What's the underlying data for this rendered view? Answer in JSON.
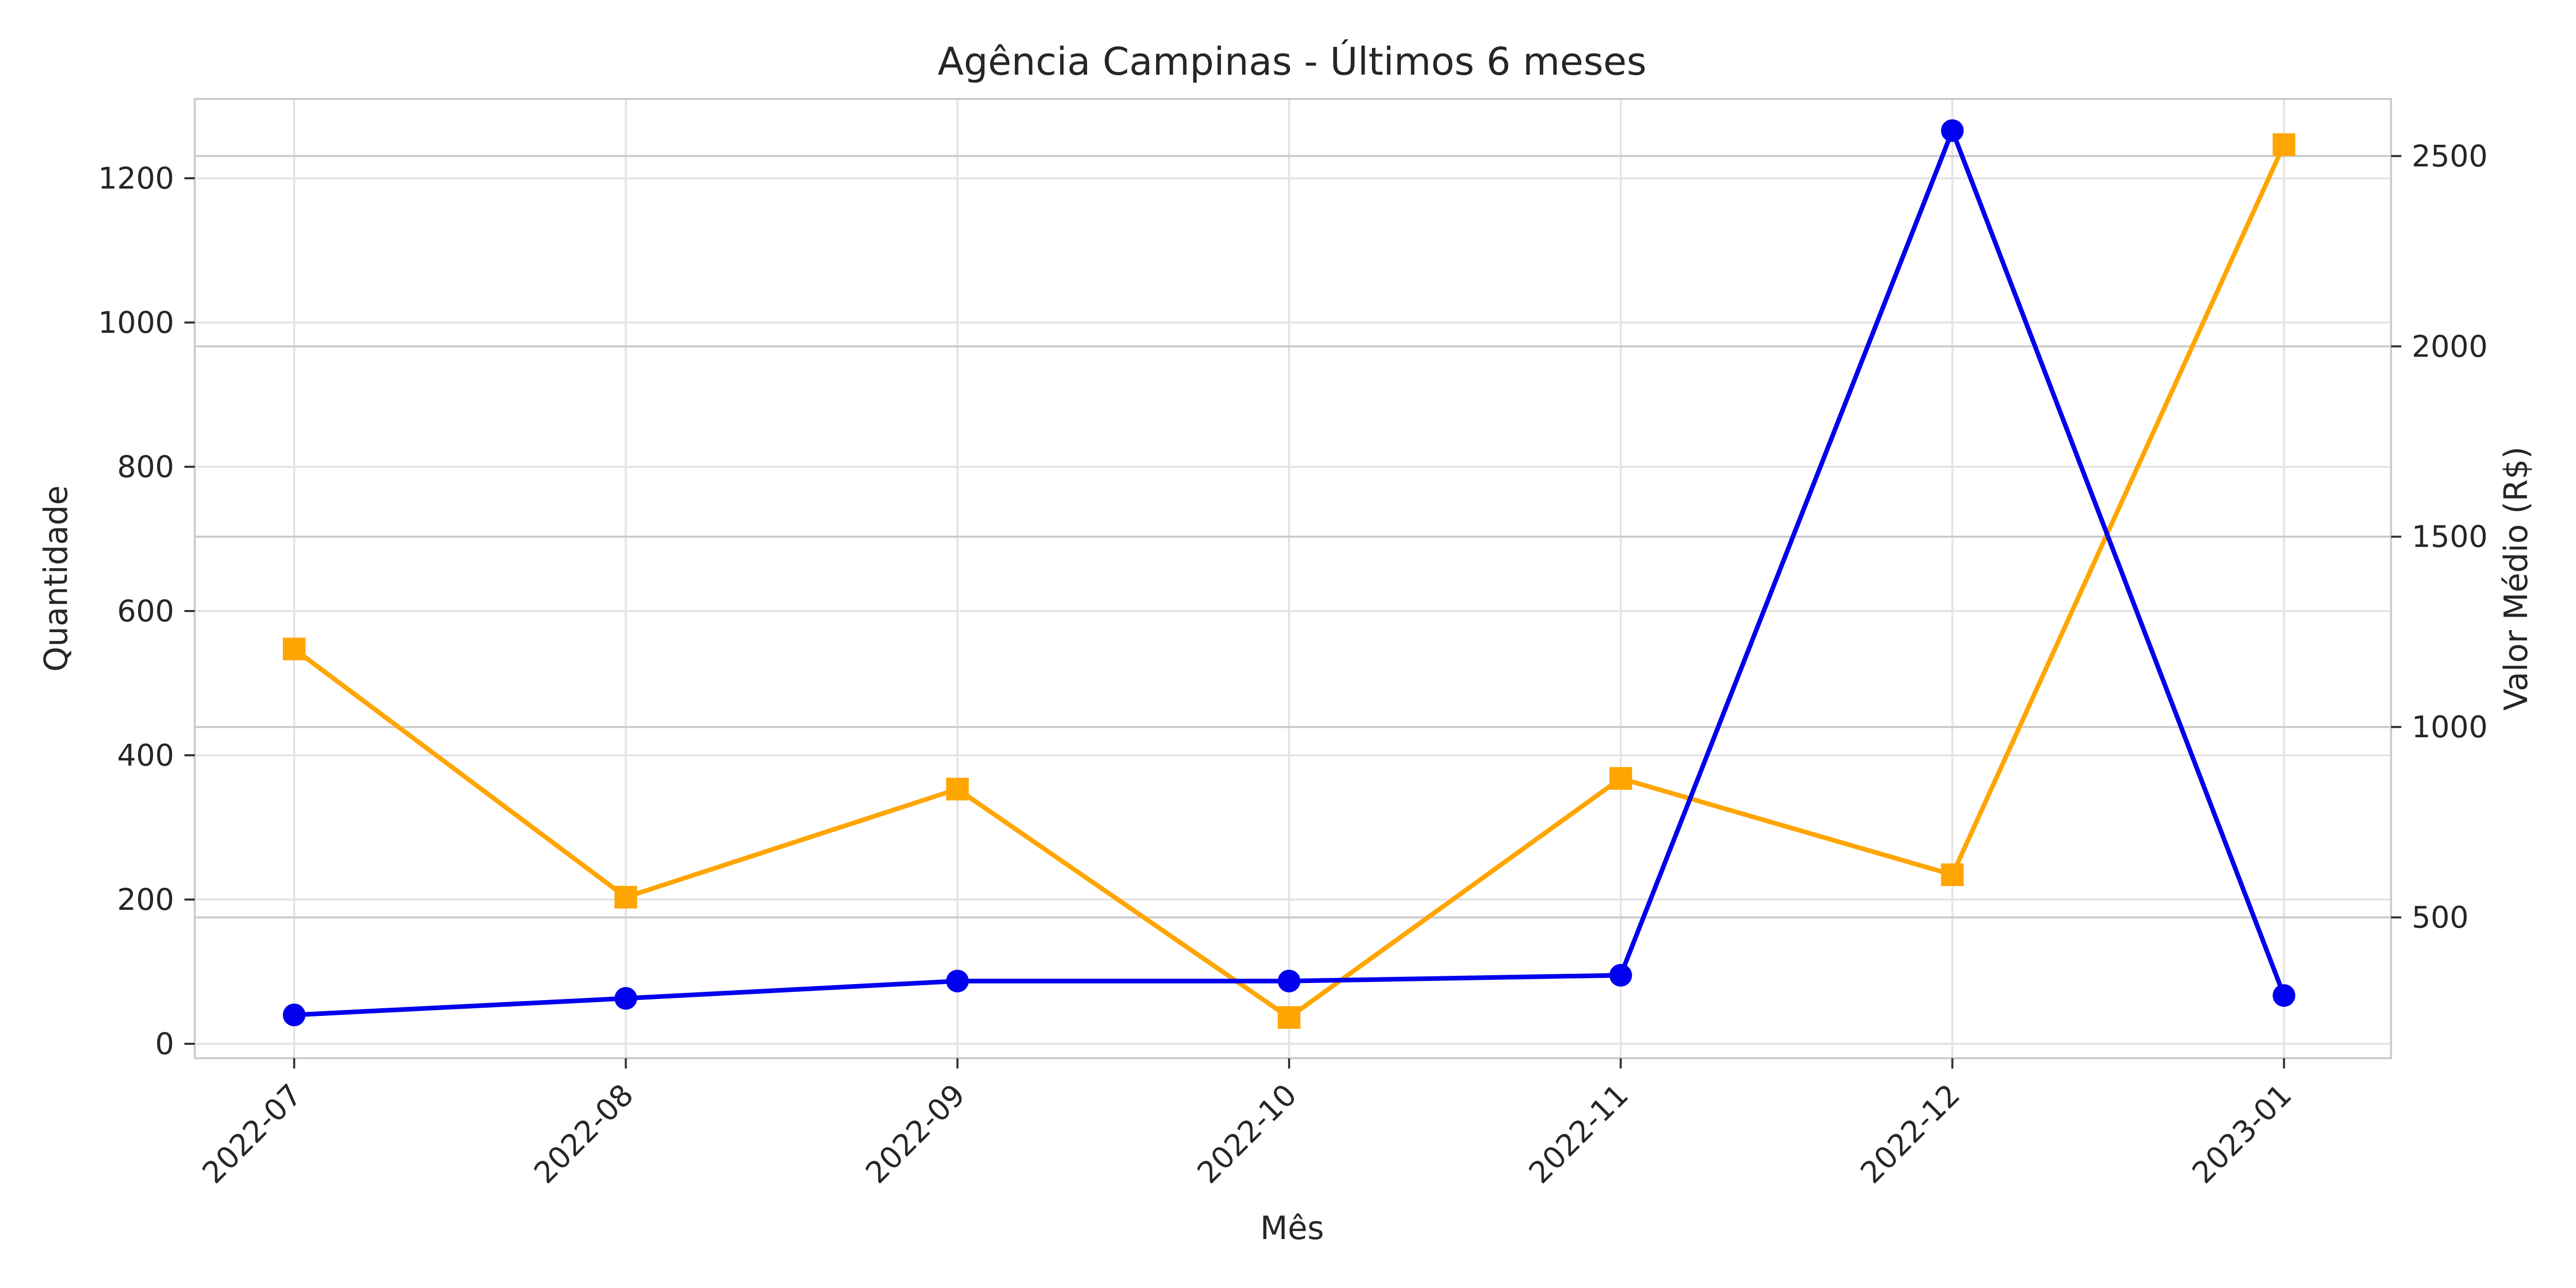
{
  "chart_data": {
    "type": "line",
    "title": "Agência Campinas - Últimos 6 meses",
    "xlabel": "Mês",
    "ylabel": "Quantidade",
    "y2label": "Valor Médio (R$)",
    "categories": [
      "2022-07",
      "2022-08",
      "2022-09",
      "2022-10",
      "2022-11",
      "2022-12",
      "2023-01"
    ],
    "series": [
      {
        "axis": "left",
        "color": "#0000ee",
        "marker": "circle",
        "values": [
          40,
          63,
          87,
          87,
          95,
          1266,
          67
        ]
      },
      {
        "axis": "right",
        "color": "#ffa500",
        "marker": "square",
        "values": [
          1205,
          553,
          837,
          237,
          865,
          612,
          2530
        ]
      }
    ],
    "ylim": [
      -20,
      1310
    ],
    "y2lim": [
      130,
      2650
    ],
    "yticks": [
      0,
      200,
      400,
      600,
      800,
      1000,
      1200
    ],
    "y2ticks": [
      500,
      1000,
      1500,
      2000,
      2500
    ],
    "y2label_color": "#ffa500",
    "grid": true
  }
}
